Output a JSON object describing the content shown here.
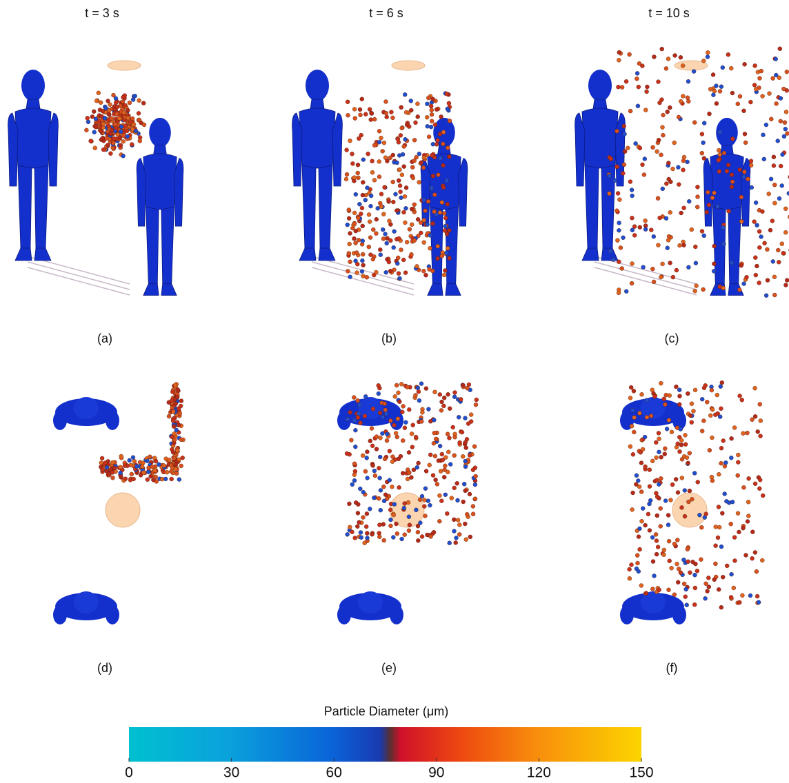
{
  "figure": {
    "column_titles": [
      "t = 3 s",
      "t = 6 s",
      "t = 10 s"
    ],
    "panel_labels": [
      "(a)",
      "(b)",
      "(c)",
      "(d)",
      "(e)",
      "(f)"
    ],
    "colorbar": {
      "title": "Particle Diameter (μm)",
      "lim": [
        0,
        150
      ],
      "ticks": [
        0,
        30,
        60,
        90,
        120,
        150
      ]
    }
  }
}
